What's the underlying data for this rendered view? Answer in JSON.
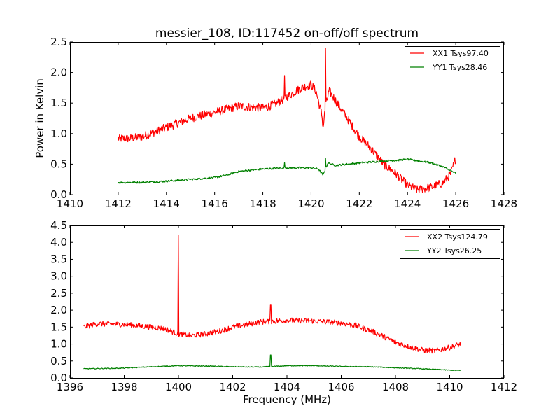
{
  "chart_data": [
    {
      "type": "line",
      "title": "messier_108, ID:117452 on-off/off spectrum",
      "xlabel": "",
      "ylabel": "Power in Kelvin",
      "xlim": [
        1410,
        1428
      ],
      "ylim": [
        0.0,
        2.5
      ],
      "xticks": [
        "1410",
        "1412",
        "1414",
        "1416",
        "1418",
        "1420",
        "1422",
        "1424",
        "1426",
        "1428"
      ],
      "yticks": [
        "0.0",
        "0.5",
        "1.0",
        "1.5",
        "2.0",
        "2.5"
      ],
      "legend_position": "top-right",
      "grid": false,
      "series": [
        {
          "name": "XX1 Tsys97.40",
          "color": "#ff0000",
          "noise": 0.07,
          "x": [
            1412,
            1412.5,
            1413,
            1414,
            1415,
            1416,
            1417,
            1418,
            1418.5,
            1419,
            1419.6,
            1420,
            1420.2,
            1420.45,
            1420.5,
            1420.6,
            1420.75,
            1421,
            1421.5,
            1422,
            1422.5,
            1423,
            1423.5,
            1424,
            1424.4,
            1425,
            1425.5,
            1425.8,
            1426
          ],
          "y": [
            0.92,
            0.92,
            0.95,
            1.1,
            1.25,
            1.35,
            1.45,
            1.42,
            1.48,
            1.6,
            1.75,
            1.8,
            1.7,
            1.3,
            1.1,
            1.45,
            1.7,
            1.55,
            1.25,
            0.95,
            0.75,
            0.5,
            0.35,
            0.15,
            0.08,
            0.12,
            0.2,
            0.35,
            0.6
          ],
          "spikes": [
            {
              "x": 1418.9,
              "y": 1.95
            },
            {
              "x": 1420.6,
              "y": 2.4
            }
          ]
        },
        {
          "name": "YY1 Tsys28.46",
          "color": "#008000",
          "noise": 0.015,
          "x": [
            1412,
            1413,
            1414,
            1415,
            1416,
            1416.5,
            1417,
            1418,
            1419,
            1420,
            1420.3,
            1420.5,
            1420.7,
            1421,
            1422,
            1423,
            1423.5,
            1424,
            1425,
            1425.5,
            1426
          ],
          "y": [
            0.2,
            0.2,
            0.22,
            0.25,
            0.28,
            0.32,
            0.38,
            0.42,
            0.44,
            0.44,
            0.42,
            0.32,
            0.52,
            0.48,
            0.52,
            0.55,
            0.56,
            0.58,
            0.52,
            0.45,
            0.35
          ],
          "spikes": [
            {
              "x": 1418.9,
              "y": 0.53
            },
            {
              "x": 1420.6,
              "y": 0.6
            }
          ]
        }
      ]
    },
    {
      "type": "line",
      "title": "",
      "xlabel": "Frequency (MHz)",
      "ylabel": "",
      "xlim": [
        1396,
        1412
      ],
      "ylim": [
        0.0,
        4.5
      ],
      "xticks": [
        "1396",
        "1398",
        "1400",
        "1402",
        "1404",
        "1406",
        "1408",
        "1410",
        "1412"
      ],
      "yticks": [
        "0.0",
        "0.5",
        "1.0",
        "1.5",
        "2.0",
        "2.5",
        "3.0",
        "3.5",
        "4.0",
        "4.5"
      ],
      "legend_position": "top-right",
      "grid": false,
      "series": [
        {
          "name": "XX2 Tsys124.79",
          "color": "#ff0000",
          "noise": 0.08,
          "x": [
            1396.5,
            1397,
            1398,
            1399,
            1399.5,
            1400,
            1400.5,
            1401,
            1401.5,
            1402,
            1403,
            1404,
            1405,
            1406,
            1406.5,
            1407,
            1407.5,
            1408,
            1408.5,
            1409,
            1409.5,
            1410,
            1410.4
          ],
          "y": [
            1.5,
            1.6,
            1.58,
            1.5,
            1.45,
            1.3,
            1.25,
            1.3,
            1.38,
            1.5,
            1.65,
            1.7,
            1.68,
            1.62,
            1.55,
            1.42,
            1.25,
            1.05,
            0.92,
            0.82,
            0.8,
            0.9,
            1.0
          ],
          "spikes": [
            {
              "x": 1400.0,
              "y": 4.22
            },
            {
              "x": 1403.4,
              "y": 2.15
            }
          ]
        },
        {
          "name": "YY2 Tsys26.25",
          "color": "#008000",
          "noise": 0.012,
          "x": [
            1396.5,
            1398,
            1399,
            1400,
            1401,
            1402,
            1403,
            1404,
            1405,
            1406,
            1407,
            1408,
            1409,
            1410,
            1410.4
          ],
          "y": [
            0.27,
            0.29,
            0.33,
            0.36,
            0.35,
            0.33,
            0.32,
            0.36,
            0.36,
            0.34,
            0.33,
            0.3,
            0.27,
            0.23,
            0.22
          ],
          "spikes": [
            {
              "x": 1403.4,
              "y": 0.68
            }
          ]
        }
      ]
    }
  ]
}
